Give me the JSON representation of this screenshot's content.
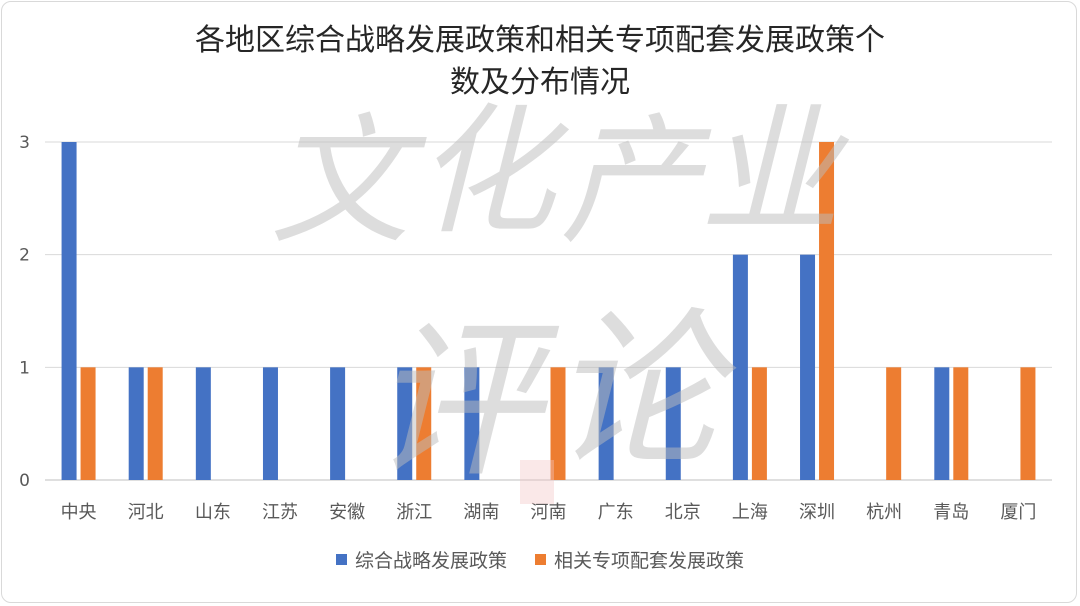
{
  "chart_data": {
    "type": "bar",
    "title": "各地区综合战略发展政策和相关专项配套发展政策个数及分布情况",
    "title_lines": [
      "各地区综合战略发展政策和相关专项配套发展政策个",
      "数及分布情况"
    ],
    "categories": [
      "中央",
      "河北",
      "山东",
      "江苏",
      "安徽",
      "浙江",
      "湖南",
      "河南",
      "广东",
      "北京",
      "上海",
      "深圳",
      "杭州",
      "青岛",
      "厦门"
    ],
    "series": [
      {
        "name": "综合战略发展政策",
        "color": "#4472C4",
        "values": [
          3,
          1,
          1,
          1,
          1,
          1,
          1,
          0,
          1,
          1,
          2,
          2,
          0,
          1,
          0
        ]
      },
      {
        "name": "相关专项配套发展政策",
        "color": "#ED7D31",
        "values": [
          1,
          1,
          0,
          0,
          0,
          1,
          0,
          1,
          0,
          0,
          1,
          3,
          1,
          1,
          1
        ]
      }
    ],
    "yticks": [
      0,
      1,
      2,
      3
    ],
    "ylim": [
      0,
      3
    ],
    "grid": true,
    "legend": "bottom"
  },
  "watermark": {
    "line1": [
      "文",
      "化",
      "产",
      "业"
    ],
    "line2": [
      "评",
      "论"
    ]
  }
}
